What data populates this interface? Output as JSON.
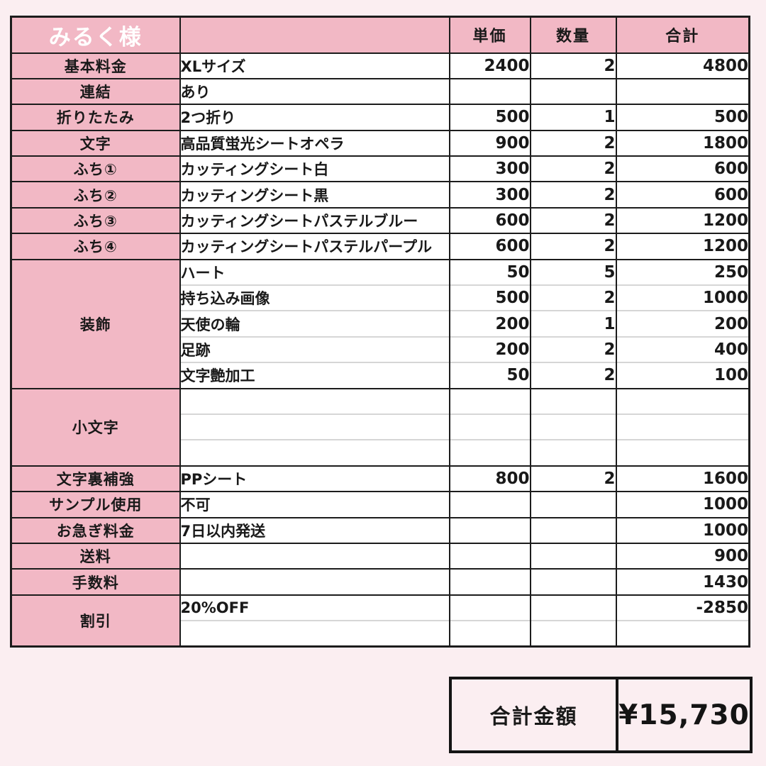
{
  "colors": {
    "page_background": "#fbeef1",
    "accent_pink": "#f2b8c5",
    "cell_white": "#ffffff",
    "text_black": "#191919",
    "discount_red": "#e53935",
    "header_text_white": "#ffffff"
  },
  "table": {
    "customer_name": "みるく様",
    "columns": {
      "item": "",
      "unit_price": "単価",
      "quantity": "数量",
      "total": "合計"
    },
    "sections": [
      {
        "label": "基本料金",
        "rows": [
          {
            "desc": "XLサイズ",
            "unit": "2400",
            "qty": "2",
            "total": "4800"
          }
        ]
      },
      {
        "label": "連結",
        "rows": [
          {
            "desc": "あり",
            "unit": "",
            "qty": "",
            "total": ""
          }
        ]
      },
      {
        "label": "折りたたみ",
        "rows": [
          {
            "desc": "2つ折り",
            "unit": "500",
            "qty": "1",
            "total": "500"
          }
        ]
      },
      {
        "label": "文字",
        "rows": [
          {
            "desc": "高品質蛍光シートオペラ",
            "unit": "900",
            "qty": "2",
            "total": "1800"
          }
        ]
      },
      {
        "label": "ふち①",
        "rows": [
          {
            "desc": "カッティングシート白",
            "unit": "300",
            "qty": "2",
            "total": "600"
          }
        ]
      },
      {
        "label": "ふち②",
        "rows": [
          {
            "desc": "カッティングシート黒",
            "unit": "300",
            "qty": "2",
            "total": "600"
          }
        ]
      },
      {
        "label": "ふち③",
        "rows": [
          {
            "desc": "カッティングシートパステルブルー",
            "unit": "600",
            "qty": "2",
            "total": "1200"
          }
        ]
      },
      {
        "label": "ふち④",
        "rows": [
          {
            "desc": "カッティングシートパステルパープル",
            "unit": "600",
            "qty": "2",
            "total": "1200"
          }
        ]
      },
      {
        "label": "装飾",
        "rows": [
          {
            "desc": "ハート",
            "unit": "50",
            "qty": "5",
            "total": "250"
          },
          {
            "desc": "持ち込み画像",
            "unit": "500",
            "qty": "2",
            "total": "1000"
          },
          {
            "desc": "天使の輪",
            "unit": "200",
            "qty": "1",
            "total": "200"
          },
          {
            "desc": "足跡",
            "unit": "200",
            "qty": "2",
            "total": "400"
          },
          {
            "desc": "文字艶加工",
            "unit": "50",
            "qty": "2",
            "total": "100"
          }
        ]
      },
      {
        "label": "小文字",
        "rows": [
          {
            "desc": "",
            "unit": "",
            "qty": "",
            "total": ""
          },
          {
            "desc": "",
            "unit": "",
            "qty": "",
            "total": ""
          },
          {
            "desc": "",
            "unit": "",
            "qty": "",
            "total": ""
          }
        ]
      },
      {
        "label": "文字裏補強",
        "rows": [
          {
            "desc": "PPシート",
            "unit": "800",
            "qty": "2",
            "total": "1600"
          }
        ]
      },
      {
        "label": "サンプル使用",
        "rows": [
          {
            "desc": "不可",
            "unit": "",
            "qty": "",
            "total": "1000"
          }
        ]
      },
      {
        "label": "お急ぎ料金",
        "rows": [
          {
            "desc": "7日以内発送",
            "unit": "",
            "qty": "",
            "total": "1000"
          }
        ]
      },
      {
        "label": "送料",
        "rows": [
          {
            "desc": "",
            "unit": "",
            "qty": "",
            "total": "900"
          }
        ]
      },
      {
        "label": "手数料",
        "rows": [
          {
            "desc": "",
            "unit": "",
            "qty": "",
            "total": "1430"
          }
        ]
      },
      {
        "label": "割引",
        "rows": [
          {
            "desc": "20%OFF",
            "unit": "",
            "qty": "",
            "total": "-2850",
            "total_red": true
          },
          {
            "desc": "",
            "unit": "",
            "qty": "",
            "total": ""
          }
        ]
      }
    ]
  },
  "summary": {
    "label": "合計金額",
    "amount": "¥15,730"
  }
}
